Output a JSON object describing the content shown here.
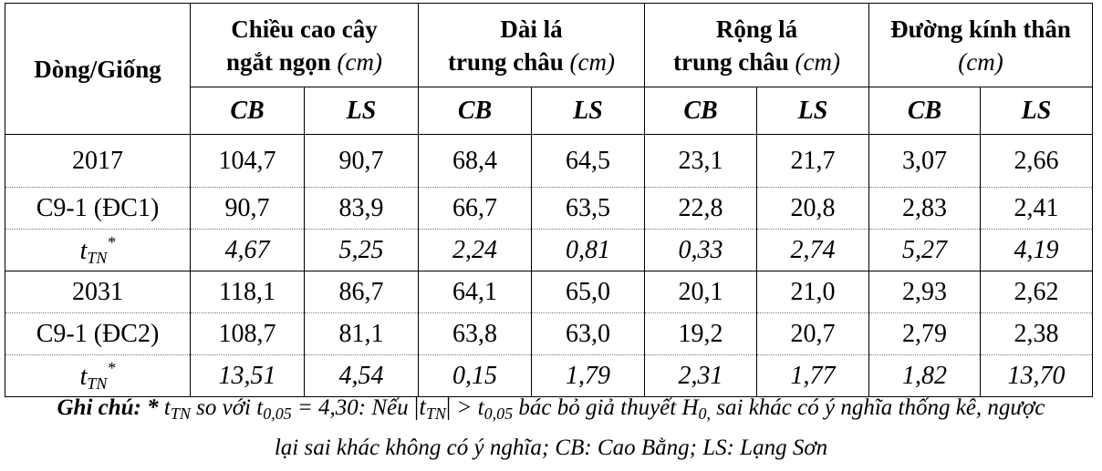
{
  "table": {
    "corner_header": "Dòng/Giống",
    "groups": [
      {
        "line1": "Chiều cao cây",
        "line2": "ngắt ngọn",
        "unit": "(cm)"
      },
      {
        "line1": "Dài lá",
        "line2": "trung châu",
        "unit": "(cm)"
      },
      {
        "line1": "Rộng lá",
        "line2": "trung châu",
        "unit": "(cm)"
      },
      {
        "line1": "Đường kính thân",
        "line2": "",
        "unit": "(cm)"
      }
    ],
    "subheaders": [
      "CB",
      "LS",
      "CB",
      "LS",
      "CB",
      "LS",
      "CB",
      "LS"
    ],
    "t_label": {
      "base": "t",
      "sub": "TN",
      "sup": "*"
    },
    "rows": [
      {
        "label": "2017",
        "values": [
          "104,7",
          "90,7",
          "68,4",
          "64,5",
          "23,1",
          "21,7",
          "3,07",
          "2,66"
        ]
      },
      {
        "label": "C9-1 (ĐC1)",
        "values": [
          "90,7",
          "83,9",
          "66,7",
          "63,5",
          "22,8",
          "20,8",
          "2,83",
          "2,41"
        ]
      },
      {
        "label": "",
        "values": [
          "4,67",
          "5,25",
          "2,24",
          "0,81",
          "0,33",
          "2,74",
          "5,27",
          "4,19"
        ]
      },
      {
        "label": "2031",
        "values": [
          "118,1",
          "86,7",
          "64,1",
          "65,0",
          "20,1",
          "21,0",
          "2,93",
          "2,62"
        ]
      },
      {
        "label": "C9-1 (ĐC2)",
        "values": [
          "108,7",
          "81,1",
          "63,8",
          "63,0",
          "19,2",
          "20,7",
          "2,79",
          "2,38"
        ]
      },
      {
        "label": "",
        "values": [
          "13,51",
          "4,54",
          "0,15",
          "1,79",
          "2,31",
          "1,77",
          "1,82",
          "13,70"
        ]
      }
    ]
  },
  "note": {
    "prefix": "Ghi chú: *",
    "t": "t",
    "t_sub": "TN",
    "part1": " so với t",
    "t005_sub": "0,05",
    "part2": " = 4,30: Nếu ",
    "abs_open": "|",
    "abs_t": "t",
    "abs_sub": "TN",
    "abs_close": "|",
    "part3": " > t",
    "t005_sub2": "0,05",
    "part4": " bác bỏ giả thuyết H",
    "h_sub": "0,",
    "part5": " sai khác có ý nghĩa thống kê, ngược",
    "line2": "lại sai khác không có ý nghĩa; CB: Cao Bằng; LS: Lạng Sơn"
  }
}
